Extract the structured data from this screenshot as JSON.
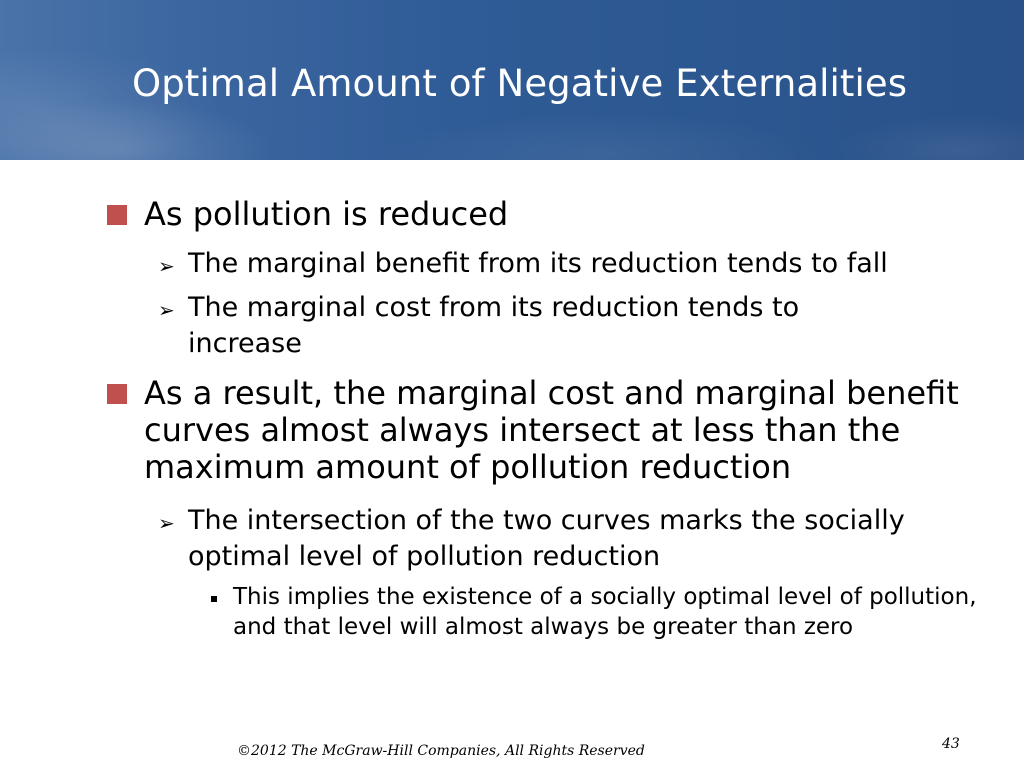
{
  "slide": {
    "title": "Optimal Amount of Negative Externalities",
    "bullets": [
      {
        "text": "As pollution is reduced",
        "sub": [
          {
            "text": "The marginal benefit from its reduction tends to fall"
          },
          {
            "text": "The marginal cost from its reduction tends to increase"
          }
        ]
      },
      {
        "text": "As a result, the marginal cost and marginal benefit curves almost always intersect at less than the maximum amount of pollution reduction",
        "sub": [
          {
            "text": "The intersection of the two curves marks the socially optimal level of pollution reduction",
            "sub": [
              {
                "text": "This implies the existence of a socially optimal level of pollution, and that level will almost always be greater than zero"
              }
            ]
          }
        ]
      }
    ],
    "footer": "©2012 The McGraw-Hill Companies, All Rights Reserved",
    "page_number": "43"
  },
  "colors": {
    "header_blue": "#2f5b96",
    "bullet_red": "#c0504d"
  },
  "icons": {
    "level1": "red-square-bullet-icon",
    "level2": "arrowhead-bullet-icon",
    "level3": "small-square-bullet-icon"
  }
}
